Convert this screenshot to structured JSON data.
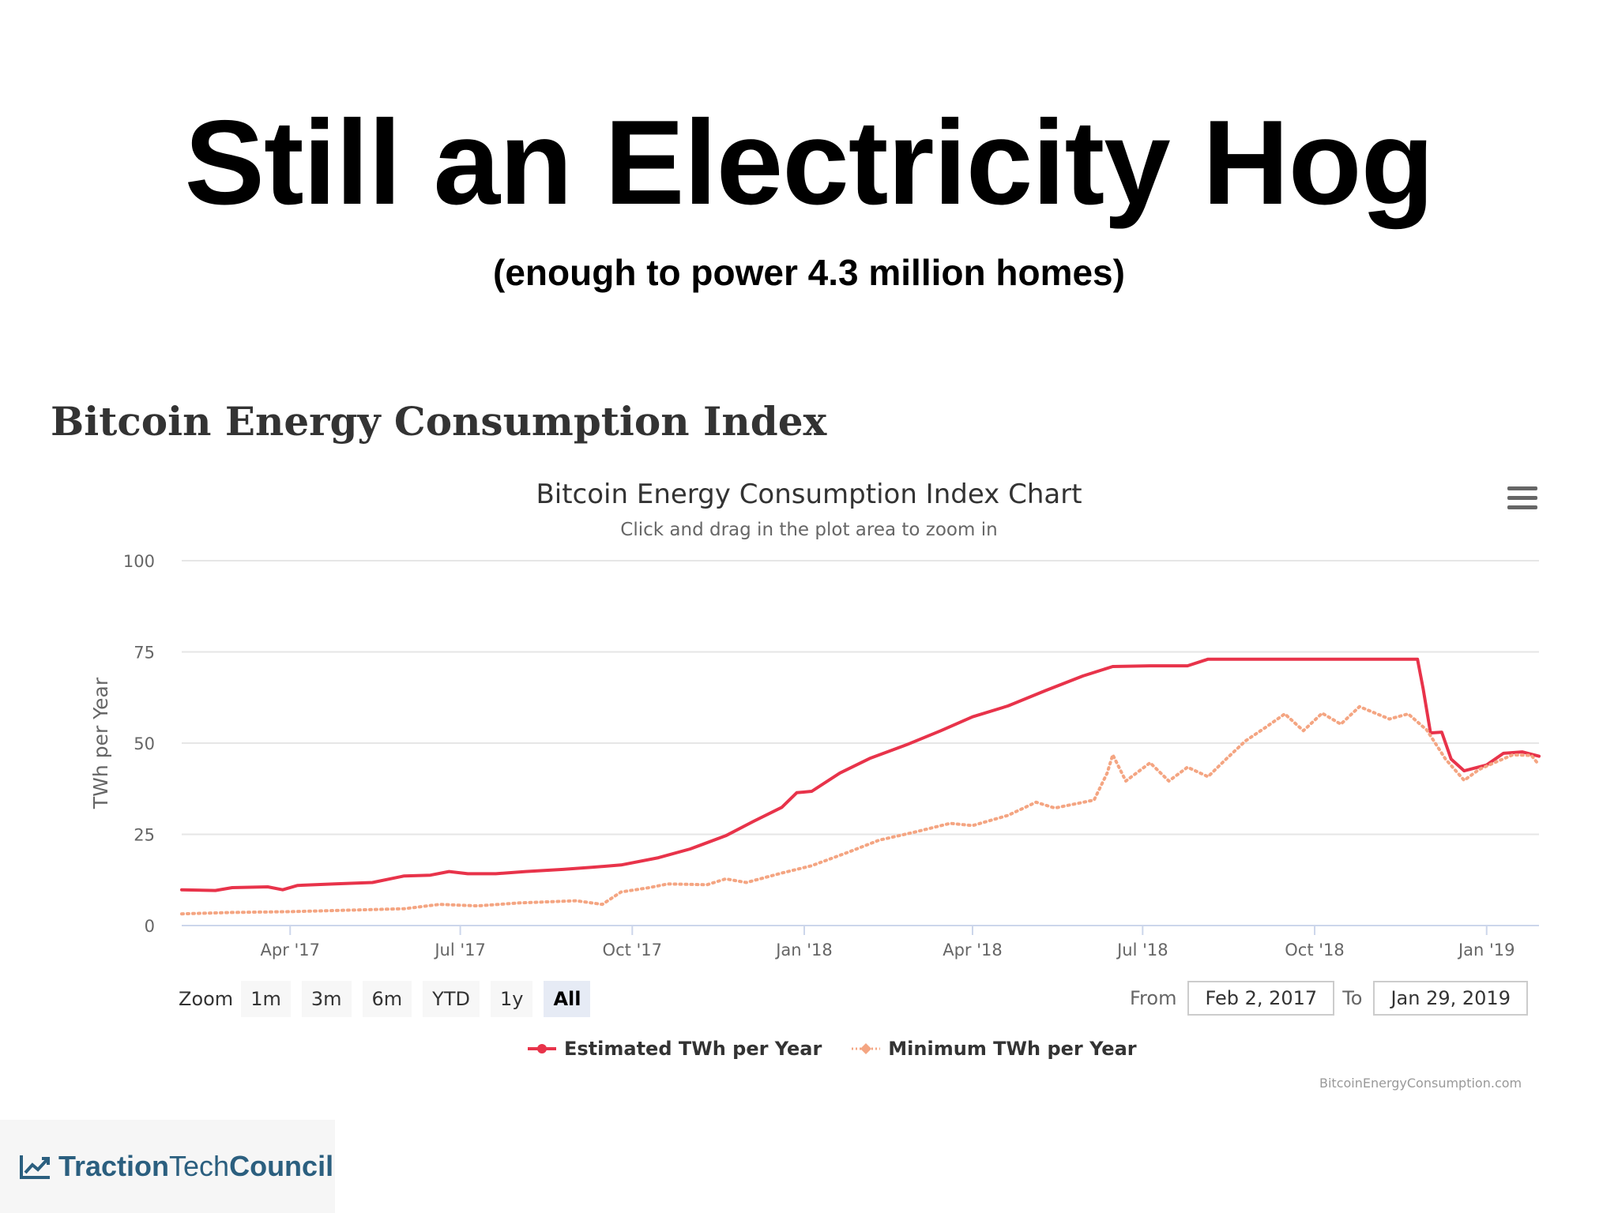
{
  "slide": {
    "title": "Still an Electricity Hog",
    "subtitle": "(enough to power 4.3 million homes)"
  },
  "page_heading": "Bitcoin Energy Consumption Index",
  "toolbar": {
    "zoom_label": "Zoom",
    "zoom_buttons": [
      "1m",
      "3m",
      "6m",
      "YTD",
      "1y",
      "All"
    ],
    "active_zoom": "All",
    "from_label": "From",
    "from_value": "Feb 2, 2017",
    "to_label": "To",
    "to_value": "Jan 29, 2019"
  },
  "credits": "BitcoinEnergyConsumption.com",
  "footer": {
    "logo_bold": "Traction",
    "logo_light": "Tech",
    "logo_bold2": "Council"
  },
  "colors": {
    "estimated": "#e8334a",
    "minimum": "#f4a582",
    "grid": "#e6e6e6",
    "axis": "#ccd6eb"
  },
  "chart_data": {
    "type": "line",
    "title": "Bitcoin Energy Consumption Index Chart",
    "subtitle": "Click and drag in the plot area to zoom in",
    "ylabel": "TWh per Year",
    "xlabel": "",
    "ylim": [
      0,
      100
    ],
    "yticks": [
      0,
      25,
      50,
      75,
      100
    ],
    "xlim": [
      "2017-02-02",
      "2019-01-29"
    ],
    "xticks": [
      {
        "date": "2017-04-01",
        "label": "Apr '17"
      },
      {
        "date": "2017-07-01",
        "label": "Jul '17"
      },
      {
        "date": "2017-10-01",
        "label": "Oct '17"
      },
      {
        "date": "2018-01-01",
        "label": "Jan '18"
      },
      {
        "date": "2018-04-01",
        "label": "Apr '18"
      },
      {
        "date": "2018-07-01",
        "label": "Jul '18"
      },
      {
        "date": "2018-10-01",
        "label": "Oct '18"
      },
      {
        "date": "2019-01-01",
        "label": "Jan '19"
      }
    ],
    "grid": true,
    "legend": "bottom-center",
    "series": [
      {
        "name": "Estimated TWh per Year",
        "style": "solid",
        "points": [
          [
            "2017-02-02",
            9.8
          ],
          [
            "2017-02-20",
            9.6
          ],
          [
            "2017-03-01",
            10.4
          ],
          [
            "2017-03-20",
            10.6
          ],
          [
            "2017-03-28",
            9.8
          ],
          [
            "2017-04-05",
            11.0
          ],
          [
            "2017-04-25",
            11.4
          ],
          [
            "2017-05-15",
            11.8
          ],
          [
            "2017-06-01",
            13.6
          ],
          [
            "2017-06-15",
            13.8
          ],
          [
            "2017-06-25",
            14.8
          ],
          [
            "2017-07-05",
            14.2
          ],
          [
            "2017-07-20",
            14.2
          ],
          [
            "2017-08-05",
            14.8
          ],
          [
            "2017-08-25",
            15.4
          ],
          [
            "2017-09-10",
            16.0
          ],
          [
            "2017-09-25",
            16.6
          ],
          [
            "2017-10-15",
            18.6
          ],
          [
            "2017-11-01",
            21.0
          ],
          [
            "2017-11-20",
            24.6
          ],
          [
            "2017-12-05",
            28.6
          ],
          [
            "2017-12-20",
            32.4
          ],
          [
            "2017-12-28",
            36.4
          ],
          [
            "2018-01-05",
            36.8
          ],
          [
            "2018-01-20",
            41.8
          ],
          [
            "2018-02-05",
            45.8
          ],
          [
            "2018-02-25",
            49.6
          ],
          [
            "2018-03-15",
            53.4
          ],
          [
            "2018-04-01",
            57.2
          ],
          [
            "2018-04-20",
            60.2
          ],
          [
            "2018-05-10",
            64.4
          ],
          [
            "2018-05-30",
            68.4
          ],
          [
            "2018-06-15",
            71.0
          ],
          [
            "2018-07-05",
            71.2
          ],
          [
            "2018-07-25",
            71.2
          ],
          [
            "2018-08-05",
            73.0
          ],
          [
            "2018-10-01",
            73.0
          ],
          [
            "2018-11-25",
            73.0
          ],
          [
            "2018-11-28",
            65.0
          ],
          [
            "2018-12-02",
            52.8
          ],
          [
            "2018-12-08",
            53.0
          ],
          [
            "2018-12-13",
            45.6
          ],
          [
            "2018-12-20",
            42.4
          ],
          [
            "2019-01-01",
            44.0
          ],
          [
            "2019-01-10",
            47.2
          ],
          [
            "2019-01-20",
            47.6
          ],
          [
            "2019-01-29",
            46.4
          ]
        ]
      },
      {
        "name": "Minimum TWh per Year",
        "style": "dotted",
        "points": [
          [
            "2017-02-02",
            3.2
          ],
          [
            "2017-03-01",
            3.6
          ],
          [
            "2017-04-01",
            3.8
          ],
          [
            "2017-05-01",
            4.2
          ],
          [
            "2017-06-01",
            4.6
          ],
          [
            "2017-06-20",
            5.8
          ],
          [
            "2017-07-10",
            5.4
          ],
          [
            "2017-08-01",
            6.2
          ],
          [
            "2017-09-01",
            6.8
          ],
          [
            "2017-09-15",
            5.8
          ],
          [
            "2017-09-25",
            9.2
          ],
          [
            "2017-10-10",
            10.4
          ],
          [
            "2017-10-20",
            11.4
          ],
          [
            "2017-11-10",
            11.2
          ],
          [
            "2017-11-20",
            12.8
          ],
          [
            "2017-12-01",
            11.8
          ],
          [
            "2017-12-20",
            14.4
          ],
          [
            "2018-01-05",
            16.4
          ],
          [
            "2018-01-25",
            20.2
          ],
          [
            "2018-02-10",
            23.4
          ],
          [
            "2018-03-01",
            25.6
          ],
          [
            "2018-03-20",
            28.0
          ],
          [
            "2018-04-01",
            27.4
          ],
          [
            "2018-04-20",
            30.2
          ],
          [
            "2018-05-05",
            33.8
          ],
          [
            "2018-05-15",
            32.2
          ],
          [
            "2018-06-05",
            34.4
          ],
          [
            "2018-06-12",
            41.8
          ],
          [
            "2018-06-15",
            46.8
          ],
          [
            "2018-06-22",
            39.6
          ],
          [
            "2018-07-05",
            44.6
          ],
          [
            "2018-07-15",
            39.6
          ],
          [
            "2018-07-25",
            43.4
          ],
          [
            "2018-08-05",
            40.8
          ],
          [
            "2018-08-15",
            45.8
          ],
          [
            "2018-08-25",
            50.6
          ],
          [
            "2018-09-05",
            54.4
          ],
          [
            "2018-09-15",
            58.0
          ],
          [
            "2018-09-25",
            53.4
          ],
          [
            "2018-10-05",
            58.2
          ],
          [
            "2018-10-15",
            55.2
          ],
          [
            "2018-10-25",
            60.0
          ],
          [
            "2018-11-10",
            56.6
          ],
          [
            "2018-11-20",
            58.0
          ],
          [
            "2018-11-30",
            53.6
          ],
          [
            "2018-12-10",
            45.6
          ],
          [
            "2018-12-20",
            39.8
          ],
          [
            "2018-12-28",
            42.8
          ],
          [
            "2019-01-05",
            44.6
          ],
          [
            "2019-01-15",
            46.8
          ],
          [
            "2019-01-25",
            46.6
          ],
          [
            "2019-01-29",
            44.0
          ]
        ]
      }
    ]
  }
}
